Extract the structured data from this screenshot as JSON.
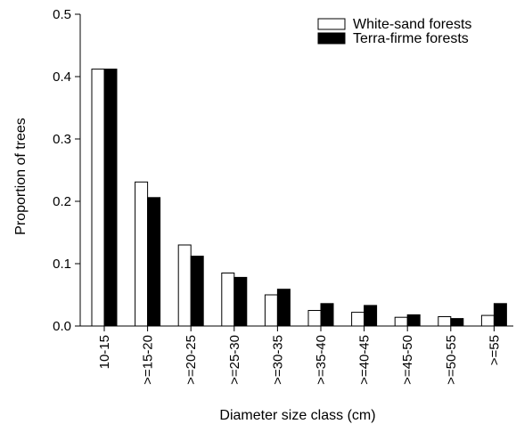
{
  "chart_data": {
    "type": "bar",
    "title": "",
    "xlabel": "Diameter size class (cm)",
    "ylabel": "Proportion of trees",
    "ylim": [
      0,
      0.5
    ],
    "yticks": [
      "0.0",
      "0.1",
      "0.2",
      "0.3",
      "0.4",
      "0.5"
    ],
    "categories": [
      "10-15",
      ">=15-20",
      ">=20-25",
      ">=25-30",
      ">=30-35",
      ">=35-40",
      ">=40-45",
      ">=45-50",
      ">=50-55",
      ">=55"
    ],
    "series": [
      {
        "name": "White-sand forests",
        "color": "#ffffff",
        "values": [
          0.412,
          0.231,
          0.13,
          0.085,
          0.05,
          0.025,
          0.022,
          0.014,
          0.015,
          0.017
        ]
      },
      {
        "name": "Terra-firme forests",
        "color": "#000000",
        "values": [
          0.412,
          0.206,
          0.112,
          0.078,
          0.059,
          0.036,
          0.033,
          0.018,
          0.012,
          0.036
        ]
      }
    ],
    "grid": false,
    "legend_position": "top-right"
  }
}
